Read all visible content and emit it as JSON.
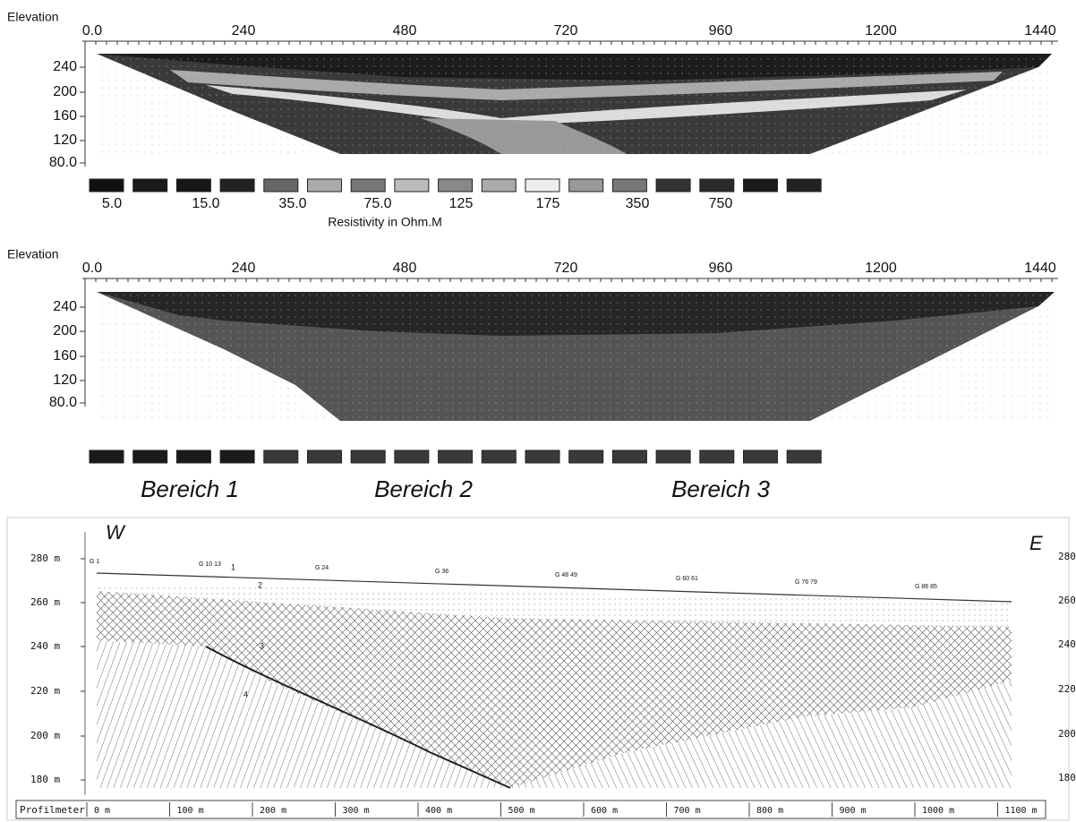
{
  "panels": [
    {
      "y_label": "Elevation",
      "x_ticks": [
        "0.0",
        "240",
        "480",
        "720",
        "960",
        "1200",
        "1440"
      ],
      "y_ticks": [
        "240",
        "200",
        "160",
        "120",
        "80.0"
      ],
      "legend_labels": [
        "5.0",
        "15.0",
        "35.0",
        "75.0",
        "125",
        "175",
        "350",
        "750"
      ],
      "legend_title": "Resistivity in Ohm.M"
    },
    {
      "y_label": "Elevation",
      "x_ticks": [
        "0.0",
        "240",
        "480",
        "720",
        "960",
        "1200",
        "1440"
      ],
      "y_ticks": [
        "240",
        "200",
        "160",
        "120",
        "80.0"
      ],
      "zone_labels": [
        "Bereich 1",
        "Bereich 2",
        "Bereich 3"
      ]
    },
    {
      "west": "W",
      "east": "E",
      "left_ticks": [
        "280 m",
        "260 m",
        "240 m",
        "220 m",
        "200 m",
        "180 m"
      ],
      "right_ticks": [
        "280",
        "260",
        "240",
        "220",
        "200",
        "180"
      ],
      "profile_title": "Profilmeter",
      "profile_ticks": [
        "0 m",
        "100 m",
        "200 m",
        "300 m",
        "400 m",
        "500 m",
        "600 m",
        "700 m",
        "800 m",
        "900 m",
        "1000 m",
        "1100 m"
      ],
      "boreholes": [
        "G 1",
        "G 10 13",
        "G 24",
        "G 36",
        "G 48 49",
        "G 60 61",
        "G 76 79",
        "G 86 85"
      ],
      "layer_numbers": [
        "1",
        "2",
        "3",
        "4"
      ]
    }
  ]
}
